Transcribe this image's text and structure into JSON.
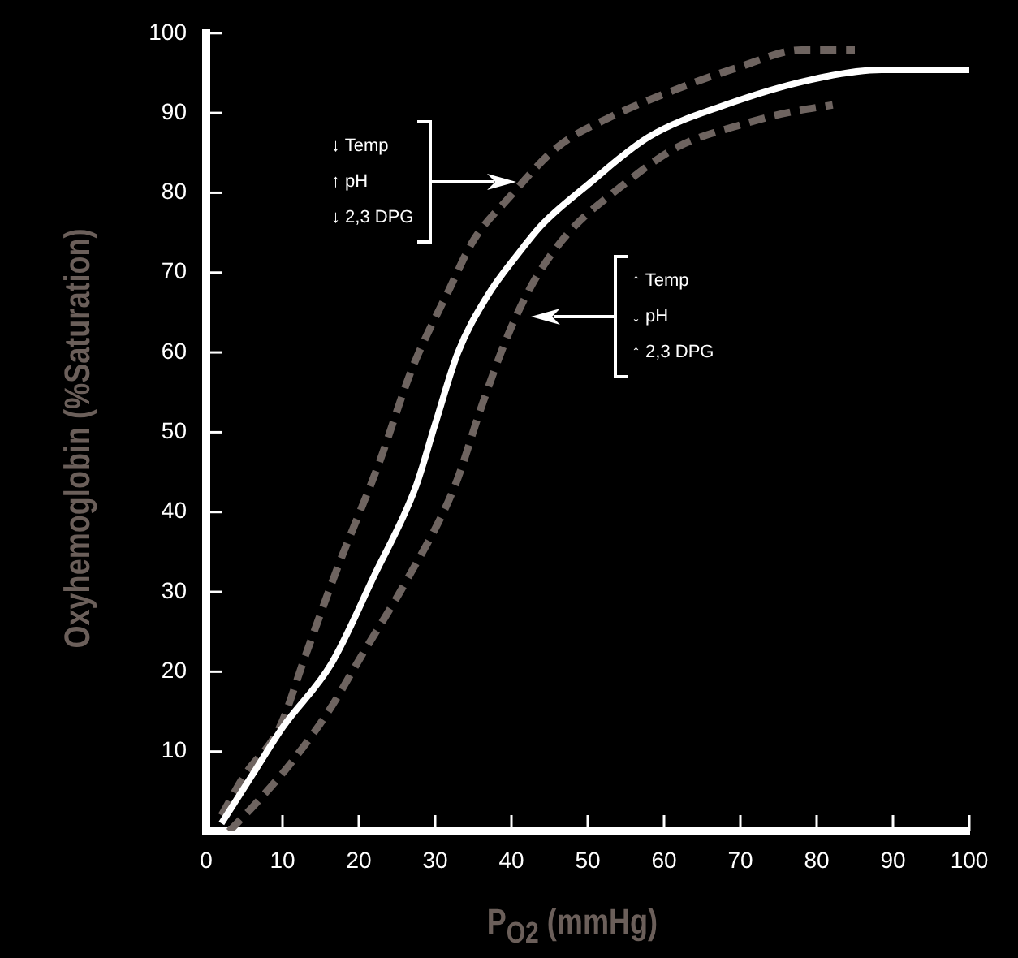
{
  "chart_data": {
    "type": "line",
    "xlabel": "P$_{O2}$ (mmHg)",
    "ylabel": "Oxyhemoglobin (%Saturation)",
    "xlim": [
      0,
      100
    ],
    "ylim": [
      0,
      100
    ],
    "xticks": [
      0,
      10,
      20,
      30,
      40,
      50,
      60,
      70,
      80,
      90,
      100
    ],
    "yticks": [
      10,
      20,
      30,
      40,
      50,
      60,
      70,
      80,
      90,
      100
    ],
    "grid": false,
    "legend": false,
    "marker": "none",
    "series": [
      {
        "color": "#ffffff",
        "line_style": "solid",
        "x": [
          2,
          6,
          10,
          16.4,
          22,
          27.4,
          30,
          33,
          36.8,
          41,
          44,
          50,
          58,
          68,
          79.4,
          88.5,
          100
        ],
        "values": [
          1,
          7,
          13,
          21,
          32,
          43,
          51,
          60,
          67,
          72.5,
          76,
          81,
          87,
          91,
          94.2,
          95.4,
          95.4
        ]
      },
      {
        "color": "#6e6460",
        "line_style": "dashed",
        "x": [
          2,
          5,
          9.6,
          13,
          17.2,
          22.6,
          27,
          31.9,
          35,
          39.6,
          46,
          53,
          61.7,
          70,
          78,
          85
        ],
        "values": [
          2,
          7,
          13,
          22,
          33,
          46,
          58,
          68,
          74,
          79.3,
          85.7,
          89.5,
          93,
          95.8,
          97.9,
          97.9
        ]
      },
      {
        "color": "#6e6460",
        "line_style": "dashed",
        "x": [
          3,
          7,
          11.3,
          16,
          20.6,
          26,
          32.6,
          36,
          39.6,
          43,
          47.4,
          54,
          61.7,
          70,
          76,
          82.1
        ],
        "values": [
          0,
          4,
          8.8,
          15,
          22.4,
          31,
          43.3,
          53,
          62.3,
          69,
          74.9,
          80.5,
          85.7,
          88.5,
          90,
          91
        ]
      }
    ],
    "annotations": [
      "↓ Temp\n↑ pH\n↓ 2,3 DPG",
      "↑ Temp\n↓ pH\n↑ 2,3 DPG"
    ]
  }
}
